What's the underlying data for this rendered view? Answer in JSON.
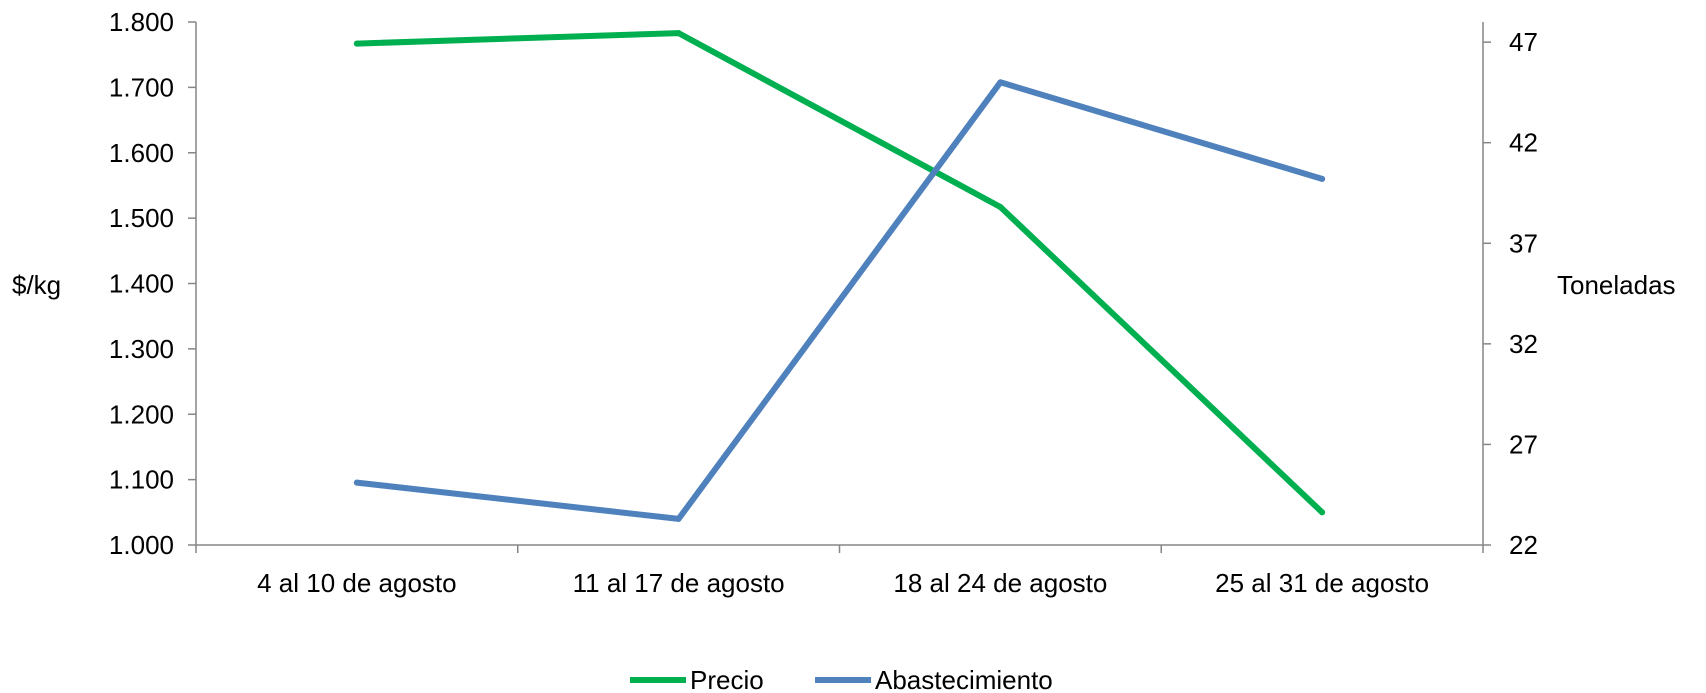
{
  "chart_data": {
    "type": "line",
    "title": "",
    "categories": [
      "4 al 10 de agosto",
      "11 al 17 de agosto",
      "18 al 24 de agosto",
      "25 al 31 de agosto"
    ],
    "series": [
      {
        "name": "Precio",
        "axis": "left",
        "color": "#00B050",
        "values": [
          1767,
          1783,
          1517,
          1050
        ]
      },
      {
        "name": "Abastecimiento",
        "axis": "right",
        "color": "#4F81BD",
        "values": [
          25.1,
          23.3,
          45.0,
          40.2
        ]
      }
    ],
    "ylabel": "$/kg",
    "ylabel_right": "Toneladas",
    "ylim": [
      1000,
      1800
    ],
    "ylim_right": [
      22,
      48
    ],
    "yticks": [
      "1.000",
      "1.100",
      "1.200",
      "1.300",
      "1.400",
      "1.500",
      "1.600",
      "1.700",
      "1.800"
    ],
    "yticks_right": [
      "22",
      "27",
      "32",
      "37",
      "42",
      "47"
    ],
    "grid": false,
    "legend": "bottom"
  }
}
